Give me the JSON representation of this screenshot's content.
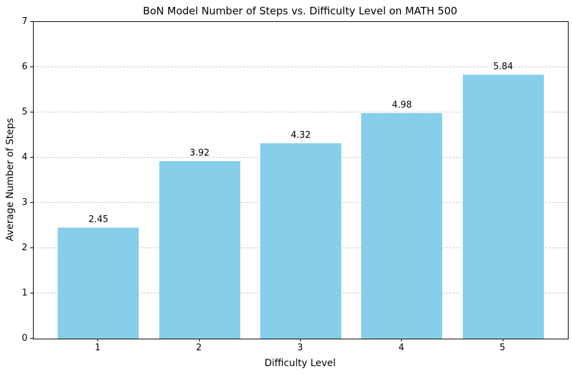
{
  "chart_data": {
    "type": "bar",
    "title": "BoN Model Number of Steps vs. Difficulty Level on MATH 500",
    "xlabel": "Difficulty Level",
    "ylabel": "Average Number of Steps",
    "categories": [
      "1",
      "2",
      "3",
      "4",
      "5"
    ],
    "values": [
      2.45,
      3.92,
      4.32,
      4.98,
      5.84
    ],
    "bar_labels": [
      "2.45",
      "3.92",
      "4.32",
      "4.98",
      "5.84"
    ],
    "ylim": [
      0,
      7
    ],
    "yticks": [
      0,
      1,
      2,
      3,
      4,
      5,
      6,
      7
    ],
    "bar_color": "#87CEEB",
    "axis_color": "#000000",
    "grid": {
      "axis": "y",
      "style": "dashed",
      "color": "#c9c9c9"
    },
    "legend": "none",
    "bar_width_fraction": 0.8
  }
}
